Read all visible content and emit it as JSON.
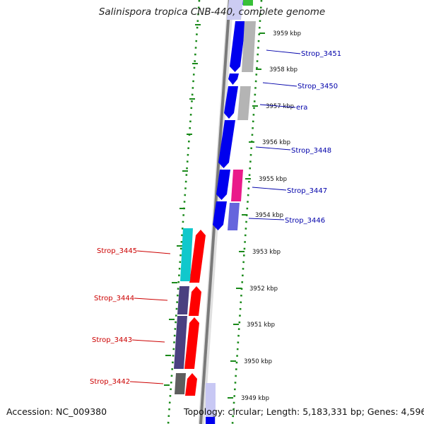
{
  "title": "Salinispora tropica CNB-440, complete genome",
  "accession": "Accession: NC_009380",
  "summary": "Topology: circular; Length: 5,183,331 bp; Genes: 4,596",
  "colors": {
    "backbone": "#7a7a7a",
    "ruler": "#1a8a1a",
    "forward_label": "#0000aa",
    "reverse_label": "#cc0000",
    "tick_label": "#111111"
  },
  "scale_ticks": [
    "3959 kbp",
    "3958 kbp",
    "3957 kbp",
    "3956 kbp",
    "3955 kbp",
    "3954 kbp",
    "3953 kbp",
    "3952 kbp",
    "3951 kbp",
    "3950 kbp",
    "3949 kbp"
  ],
  "forward_genes": [
    {
      "label": "Strop_3451"
    },
    {
      "label": "Strop_3450"
    },
    {
      "label": "era"
    },
    {
      "label": "Strop_3448"
    },
    {
      "label": "Strop_3447"
    },
    {
      "label": "Strop_3446"
    }
  ],
  "reverse_genes": [
    {
      "label": "Strop_3445"
    },
    {
      "label": "Strop_3444"
    },
    {
      "label": "Strop_3443"
    },
    {
      "label": "Strop_3442"
    }
  ]
}
